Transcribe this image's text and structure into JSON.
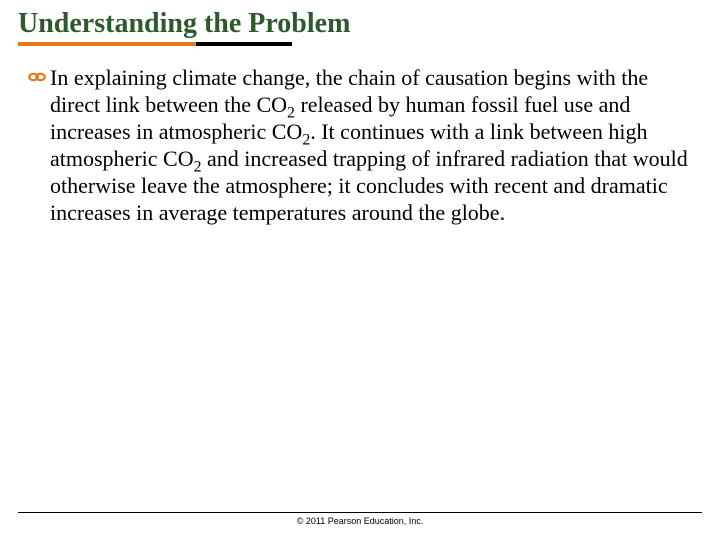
{
  "title": "Understanding the Problem",
  "title_color": "#2d5a2d",
  "title_fontsize": 28,
  "underline": {
    "orange_width_pct": 26,
    "black_width_pct": 14,
    "orange_color": "#e67817",
    "black_color": "#000000"
  },
  "bullet_icon": {
    "name": "chain-link-icon",
    "fill": "#e67817",
    "stroke": "#8a4a0a"
  },
  "body": {
    "segments": [
      {
        "t": "In explaining climate change, the chain of causation begins with the direct link between the CO"
      },
      {
        "t": "2",
        "sub": true
      },
      {
        "t": " released by human fossil fuel use and increases in atmospheric CO"
      },
      {
        "t": "2",
        "sub": true
      },
      {
        "t": ". It continues with a link between high atmospheric CO"
      },
      {
        "t": "2",
        "sub": true
      },
      {
        "t": " and increased trapping of infrared radiation that would otherwise leave the atmosphere; it concludes with recent and dramatic increases in average temperatures around the globe."
      }
    ],
    "fontsize": 22,
    "color": "#000000"
  },
  "copyright": "© 2011 Pearson Education, Inc."
}
